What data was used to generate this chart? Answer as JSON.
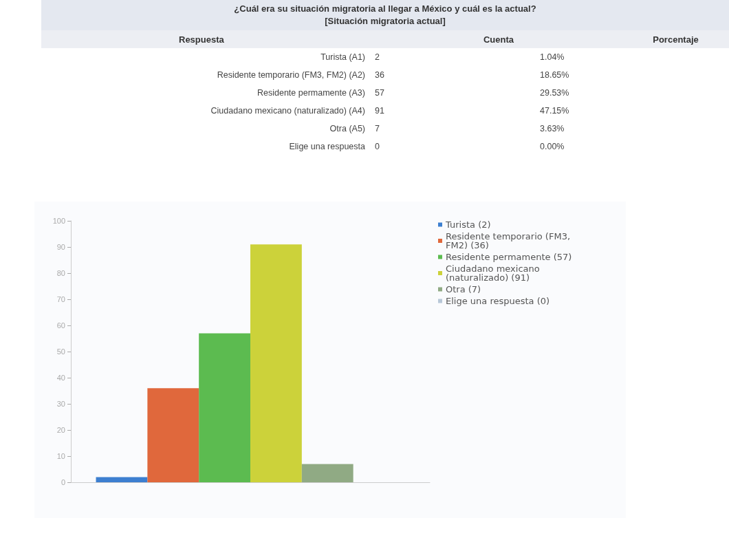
{
  "chart_data": [
    {
      "type": "other",
      "title": "¿Cuál era su situación migratoria al llegar a México y cuál es la actual?",
      "subtitle": "[Situación migratoria actual]",
      "annotations": [
        "Respuesta",
        "Cuenta",
        "Porcentaje",
        "Turista (A1)",
        "2",
        "1.04%",
        "Residente temporario (FM3, FM2) (A2)",
        "36",
        "18.65%",
        "Residente permamente (A3)",
        "57",
        "29.53%",
        "Ciudadano mexicano (naturalizado) (A4)",
        "91",
        "47.15%",
        "Otra (A5)",
        "7",
        "3.63%",
        "Elige una respuesta",
        "0",
        "0.00%"
      ]
    },
    {
      "type": "bar",
      "categories": [
        null
      ],
      "series": [
        {
          "name": "Turista (2)",
          "color": "#3d7fd0",
          "values": [
            2
          ]
        },
        {
          "name": "Residente temporario (FM3, FM2) (36)",
          "color": "#e0683c",
          "values": [
            36
          ]
        },
        {
          "name": "Residente permamente (57)",
          "color": "#5cbb50",
          "values": [
            57
          ]
        },
        {
          "name": "Ciudadano mexicano (naturalizado) (91)",
          "color": "#ccd23a",
          "values": [
            91
          ]
        },
        {
          "name": "Otra (7)",
          "color": "#90aa84",
          "values": [
            7
          ]
        },
        {
          "name": "Elige una respuesta (0)",
          "color": "#b8c8d8",
          "values": [
            0
          ]
        }
      ],
      "ylim": [
        0,
        100
      ],
      "yticks": [
        0,
        10,
        20,
        30,
        40,
        50,
        60,
        70,
        80,
        90,
        100
      ],
      "grid": false,
      "legend": "right"
    }
  ]
}
